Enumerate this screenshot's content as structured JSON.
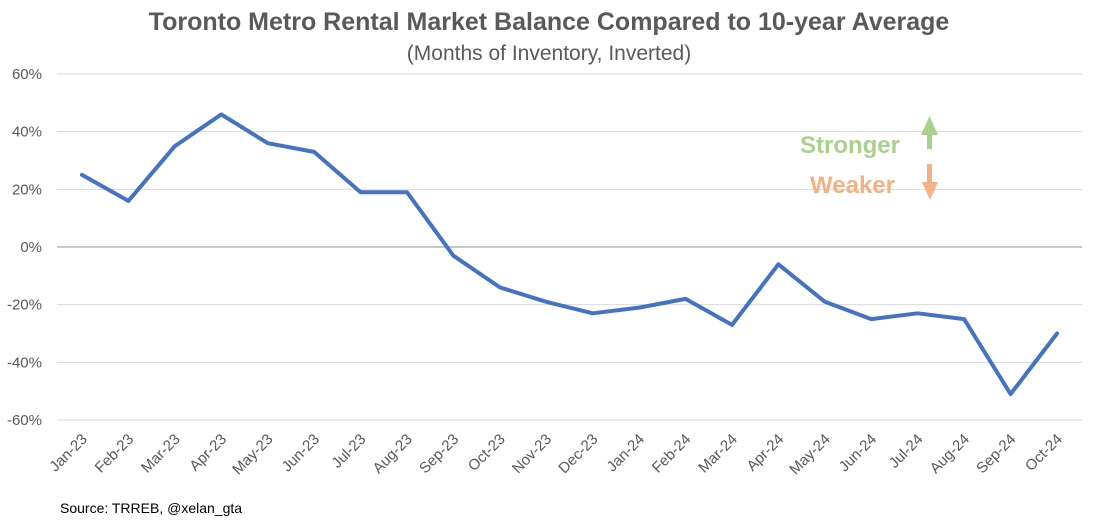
{
  "chart_data": {
    "type": "line",
    "title": "Toronto Metro Rental Market Balance Compared to 10-year Average",
    "subtitle": "(Months of Inventory, Inverted)",
    "xlabel": "",
    "ylabel": "",
    "categories": [
      "Jan-23",
      "Feb-23",
      "Mar-23",
      "Apr-23",
      "May-23",
      "Jun-23",
      "Jul-23",
      "Aug-23",
      "Sep-23",
      "Oct-23",
      "Nov-23",
      "Dec-23",
      "Jan-24",
      "Feb-24",
      "Mar-24",
      "Apr-24",
      "May-24",
      "Jun-24",
      "Jul-24",
      "Aug-24",
      "Sep-24",
      "Oct-24"
    ],
    "series": [
      {
        "name": "",
        "values": [
          25,
          16,
          35,
          46,
          36,
          33,
          19,
          19,
          -3,
          -14,
          -19,
          -23,
          -21,
          -18,
          -27,
          -6,
          -19,
          -25,
          -23,
          -25,
          -51,
          -30
        ]
      }
    ],
    "ylim": [
      -60,
      60
    ],
    "yticks": [
      -60,
      -40,
      -20,
      0,
      20,
      40,
      60
    ],
    "ytick_labels": [
      "-60%",
      "-40%",
      "-20%",
      "0%",
      "20%",
      "40%",
      "60%"
    ],
    "grid": true,
    "annotations": [
      {
        "text": "Stronger",
        "color": "#a9d18e",
        "arrow": "up"
      },
      {
        "text": "Weaker",
        "color": "#f4b183",
        "arrow": "down"
      }
    ],
    "colors": {
      "line": "#4472c4",
      "grid": "#d9d9d9",
      "zero_line": "#a6a6a6",
      "text": "#595959"
    }
  },
  "source": "Source: TRREB, @xelan_gta"
}
